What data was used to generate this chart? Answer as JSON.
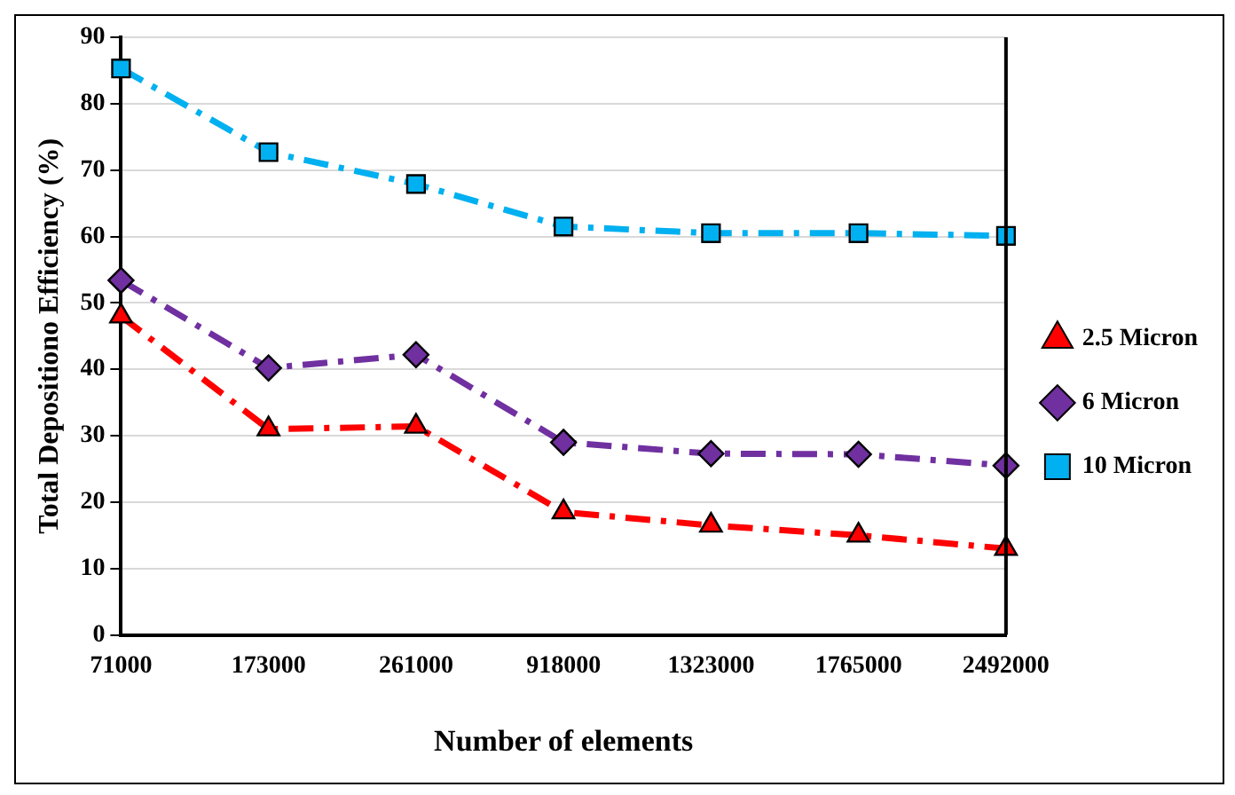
{
  "chart_data": {
    "type": "line",
    "xlabel": "Number of elements",
    "ylabel": "Total Depositiono Efficiency (%)",
    "categories": [
      "71000",
      "173000",
      "261000",
      "918000",
      "1323000",
      "1765000",
      "2492000"
    ],
    "series": [
      {
        "name": "2.5 Micron",
        "color": "#ff0000",
        "marker": "triangle",
        "values": [
          48,
          31,
          31.4,
          18.5,
          16.5,
          15,
          13
        ]
      },
      {
        "name": "6 Micron",
        "color": "#7030a0",
        "marker": "diamond",
        "values": [
          53.4,
          40.2,
          42.2,
          29,
          27.3,
          27.2,
          25.5
        ]
      },
      {
        "name": "10 Micron",
        "color": "#00b0f0",
        "marker": "square",
        "values": [
          85.3,
          72.7,
          67.9,
          61.5,
          60.5,
          60.5,
          60.1
        ]
      }
    ],
    "ylim": [
      0,
      90
    ],
    "yticks": [
      0,
      10,
      20,
      30,
      40,
      50,
      60,
      70,
      80,
      90
    ],
    "grid": "y",
    "legend": "right",
    "line_style": "dashed"
  }
}
